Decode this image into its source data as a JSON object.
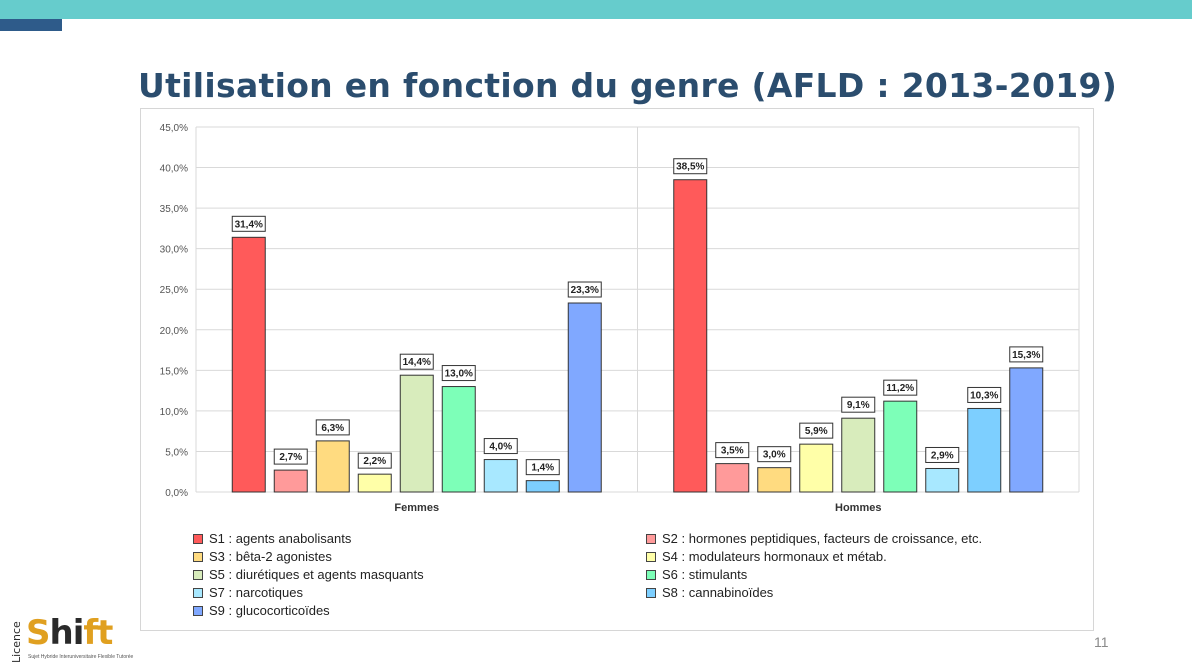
{
  "slide": {
    "title": "Utilisation en fonction du genre (AFLD : 2013-2019)",
    "page_number": "11"
  },
  "logo": {
    "licence": "Licence",
    "brand_s": "S",
    "brand_hi": "hi",
    "brand_ft": "ft",
    "tagline": "Sujet Hybride Interuniversitaire Flexible Tutorée"
  },
  "colors": {
    "top_bar": "#66cccc",
    "top_accent": "#2e5b8a",
    "title": "#2b4d6e"
  },
  "chart_data": {
    "type": "bar",
    "title": "",
    "xlabel": "",
    "ylabel": "",
    "ylim": [
      0,
      45
    ],
    "y_ticks": [
      "0,0%",
      "5,0%",
      "10,0%",
      "15,0%",
      "20,0%",
      "25,0%",
      "30,0%",
      "35,0%",
      "40,0%",
      "45,0%"
    ],
    "grid": true,
    "legend_position": "bottom",
    "categories": [
      "Femmes",
      "Hommes"
    ],
    "series": [
      {
        "name": "S1 : agents anabolisants",
        "color": "#ff5a5a",
        "values": [
          31.4,
          38.5
        ],
        "labels": [
          "31,4%",
          "38,5%"
        ]
      },
      {
        "name": "S2 : hormones peptidiques, facteurs de croissance, etc.",
        "color": "#ff9a9a",
        "values": [
          2.7,
          3.5
        ],
        "labels": [
          "2,7%",
          "3,5%"
        ]
      },
      {
        "name": "S3 : bêta-2 agonistes",
        "color": "#ffdb80",
        "values": [
          6.3,
          3.0
        ],
        "labels": [
          "6,3%",
          "3,0%"
        ]
      },
      {
        "name": "S4 : modulateurs hormonaux et métab.",
        "color": "#ffffa8",
        "values": [
          2.2,
          5.9
        ],
        "labels": [
          "2,2%",
          "5,9%"
        ]
      },
      {
        "name": "S5 : diurétiques et agents masquants",
        "color": "#d8ecbc",
        "values": [
          14.4,
          9.1
        ],
        "labels": [
          "14,4%",
          "9,1%"
        ]
      },
      {
        "name": "S6 : stimulants",
        "color": "#7dffb8",
        "values": [
          13.0,
          11.2
        ],
        "labels": [
          "13,0%",
          "11,2%"
        ]
      },
      {
        "name": "S7 : narcotiques",
        "color": "#a8e8ff",
        "values": [
          4.0,
          2.9
        ],
        "labels": [
          "4,0%",
          "2,9%"
        ]
      },
      {
        "name": "S8 : cannabinoïdes",
        "color": "#7dcfff",
        "values": [
          1.4,
          10.3
        ],
        "labels": [
          "1,4%",
          "10,3%"
        ]
      },
      {
        "name": "S9 : glucocorticoïdes",
        "color": "#80a8ff",
        "values": [
          23.3,
          15.3
        ],
        "labels": [
          "23,3%",
          "15,3%"
        ]
      }
    ]
  }
}
